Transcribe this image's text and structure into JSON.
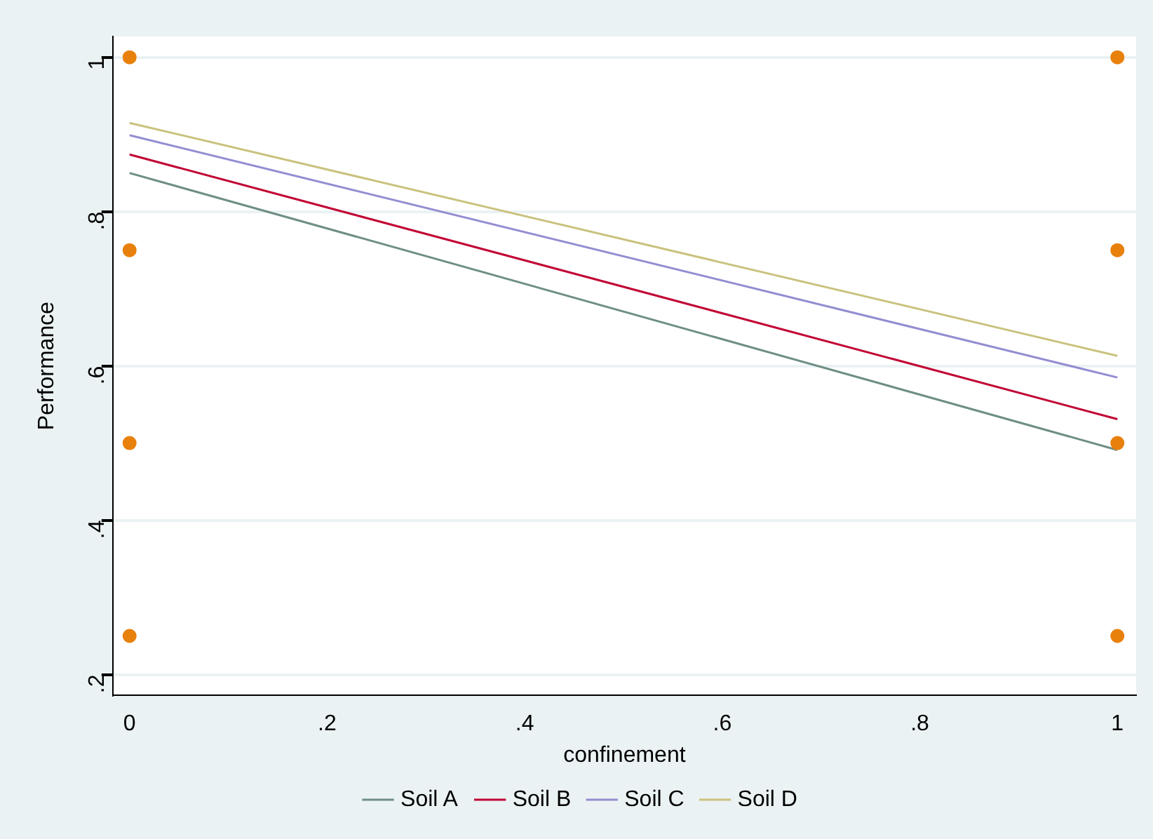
{
  "chart_data": {
    "type": "line",
    "xlabel": "confinement",
    "ylabel": "Performance",
    "x": [
      0,
      1
    ],
    "xlim": [
      -0.017,
      1.019
    ],
    "ylim": [
      0.173,
      1.027
    ],
    "xticks": [
      0,
      {
        "value": 0.2,
        "label": ".2"
      },
      {
        "value": 0.4,
        "label": ".4"
      },
      {
        "value": 0.6,
        "label": ".6"
      },
      {
        "value": 0.8,
        "label": ".8"
      },
      1
    ],
    "yticks": [
      {
        "value": 0.2,
        "label": ".2"
      },
      {
        "value": 0.4,
        "label": ".4"
      },
      {
        "value": 0.6,
        "label": ".6"
      },
      {
        "value": 0.8,
        "label": ".8"
      },
      1
    ],
    "grid": "y",
    "legend": "bottom",
    "series": [
      {
        "type": "scatter",
        "color": "#e8800c",
        "marker": "circle",
        "values": [
          1,
          1
        ]
      },
      {
        "type": "scatter",
        "color": "#e8800c",
        "marker": "circle",
        "values": [
          0.75,
          0.75
        ]
      },
      {
        "type": "scatter",
        "color": "#e8800c",
        "marker": "circle",
        "values": [
          0.5,
          0.5
        ]
      },
      {
        "type": "scatter",
        "color": "#e8800c",
        "marker": "circle",
        "values": [
          0.25,
          0.25
        ]
      },
      {
        "name": "Soil A",
        "color": "#6e8e84",
        "marker": "none",
        "values": [
          0.85,
          0.491
        ]
      },
      {
        "name": "Soil B",
        "color": "#c10534",
        "marker": "none",
        "values": [
          0.874,
          0.531
        ]
      },
      {
        "name": "Soil C",
        "color": "#938dd2",
        "marker": "none",
        "values": [
          0.899,
          0.585
        ]
      },
      {
        "name": "Soil D",
        "color": "#cac27e",
        "marker": "none",
        "values": [
          0.915,
          0.613
        ]
      }
    ]
  }
}
